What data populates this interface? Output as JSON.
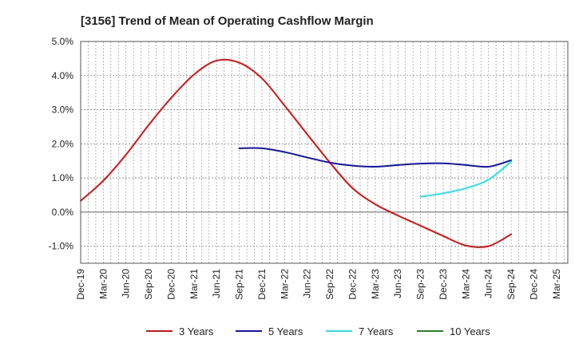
{
  "chart_data": {
    "type": "line",
    "title": "[3156]  Trend of Mean of Operating Cashflow Margin",
    "xlabel": "",
    "ylabel": "",
    "x_tick_labels": [
      "Dec-19",
      "Mar-20",
      "Jun-20",
      "Sep-20",
      "Dec-20",
      "Mar-21",
      "Jun-21",
      "Sep-21",
      "Dec-21",
      "Mar-22",
      "Jun-22",
      "Sep-22",
      "Dec-22",
      "Mar-23",
      "Jun-23",
      "Sep-23",
      "Dec-23",
      "Mar-24",
      "Jun-24",
      "Sep-24",
      "Dec-24",
      "Mar-25"
    ],
    "y_tick_labels": [
      "5.0%",
      "4.0%",
      "3.0%",
      "2.0%",
      "1.0%",
      "0.0%",
      "-1.0%"
    ],
    "y_ticks": [
      5,
      4,
      3,
      2,
      1,
      0,
      -1
    ],
    "ylim": [
      -1.5,
      5.0
    ],
    "x_range_quarters": [
      0,
      21.5
    ],
    "grid": true,
    "legend_position": "bottom",
    "series": [
      {
        "name": "3 Years",
        "color": "#dd1111",
        "x": [
          "Dec-19",
          "Mar-20",
          "Jun-20",
          "Sep-20",
          "Dec-20",
          "Mar-21",
          "Jun-21",
          "Sep-21",
          "Dec-21",
          "Mar-22",
          "Jun-22",
          "Sep-22",
          "Dec-22",
          "Mar-23",
          "Jun-23",
          "Sep-23",
          "Dec-23",
          "Mar-24",
          "Jun-24",
          "Sep-24"
        ],
        "values": [
          0.33,
          0.92,
          1.68,
          2.55,
          3.35,
          4.03,
          4.44,
          4.38,
          3.92,
          3.12,
          2.28,
          1.45,
          0.7,
          0.23,
          -0.1,
          -0.4,
          -0.7,
          -0.98,
          -1.0,
          -0.65
        ]
      },
      {
        "name": "5 Years",
        "color": "#1111bb",
        "x": [
          "Sep-21",
          "Dec-21",
          "Mar-22",
          "Jun-22",
          "Sep-22",
          "Dec-22",
          "Mar-23",
          "Jun-23",
          "Sep-23",
          "Dec-23",
          "Mar-24",
          "Jun-24",
          "Sep-24"
        ],
        "values": [
          1.87,
          1.87,
          1.76,
          1.6,
          1.45,
          1.36,
          1.33,
          1.38,
          1.42,
          1.43,
          1.38,
          1.33,
          1.52
        ]
      },
      {
        "name": "7 Years",
        "color": "#22e5ee",
        "x": [
          "Sep-23",
          "Dec-23",
          "Mar-24",
          "Jun-24",
          "Sep-24"
        ],
        "values": [
          0.45,
          0.55,
          0.7,
          0.95,
          1.48
        ]
      },
      {
        "name": "10 Years",
        "color": "#228822",
        "x": [],
        "values": []
      }
    ]
  }
}
